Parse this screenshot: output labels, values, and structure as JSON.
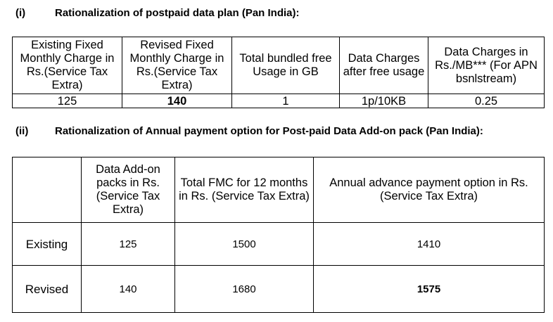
{
  "section1": {
    "number": "(i)",
    "title": "Rationalization of postpaid data plan (Pan India):",
    "headers": [
      "Existing Fixed Monthly Charge in Rs.(Service Tax Extra)",
      "Revised Fixed Monthly Charge in Rs.(Service Tax Extra)",
      "Total bundled free Usage in GB",
      "Data Charges after free usage",
      "Data Charges in Rs./MB*** (For APN bsnlstream)"
    ],
    "row": [
      "125",
      "140",
      "1",
      "1p/10KB",
      "0.25"
    ]
  },
  "section2": {
    "number": "(ii)",
    "title": "Rationalization of Annual payment option for Post-paid Data Add-on pack (Pan India):",
    "headers": [
      "",
      "Data Add-on packs in Rs. (Service Tax Extra)",
      "Total FMC for 12 months in Rs. (Service Tax Extra)",
      "Annual advance payment option in Rs. (Service Tax Extra)"
    ],
    "rows": [
      [
        "Existing",
        "125",
        "1500",
        "1410"
      ],
      [
        "Revised",
        "140",
        "1680",
        "1575"
      ]
    ]
  }
}
